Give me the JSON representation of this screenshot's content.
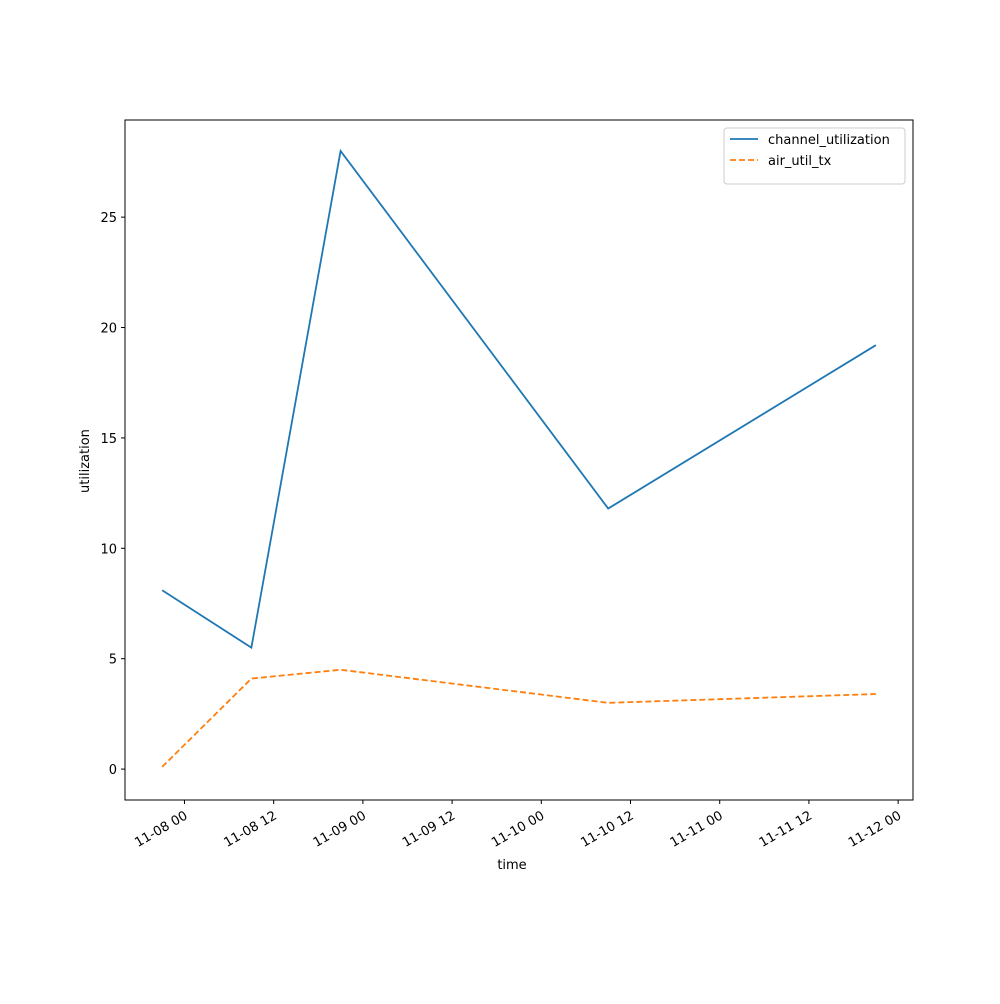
{
  "chart_data": {
    "type": "line",
    "x": [
      "11-07 21",
      "11-08 09",
      "11-08 21",
      "11-10 09",
      "11-11 21"
    ],
    "series": [
      {
        "name": "channel_utilization",
        "color": "#1f77b4",
        "dash": "solid",
        "values": [
          8.1,
          5.5,
          28.0,
          11.8,
          19.2
        ]
      },
      {
        "name": "air_util_tx",
        "color": "#ff7f0e",
        "dash": "dashed",
        "values": [
          0.1,
          4.1,
          4.5,
          3.0,
          3.4
        ]
      }
    ],
    "xlabel": "time",
    "ylabel": "utilization",
    "xlim": [
      "11-07 16",
      "11-12 02"
    ],
    "xticks": [
      "11-08 00",
      "11-08 12",
      "11-09 00",
      "11-09 12",
      "11-10 00",
      "11-10 12",
      "11-11 00",
      "11-11 12",
      "11-12 00"
    ],
    "ylim": [
      -1.4,
      29.4
    ],
    "yticks": [
      0,
      5,
      10,
      15,
      20,
      25
    ],
    "legend": "upper right"
  }
}
